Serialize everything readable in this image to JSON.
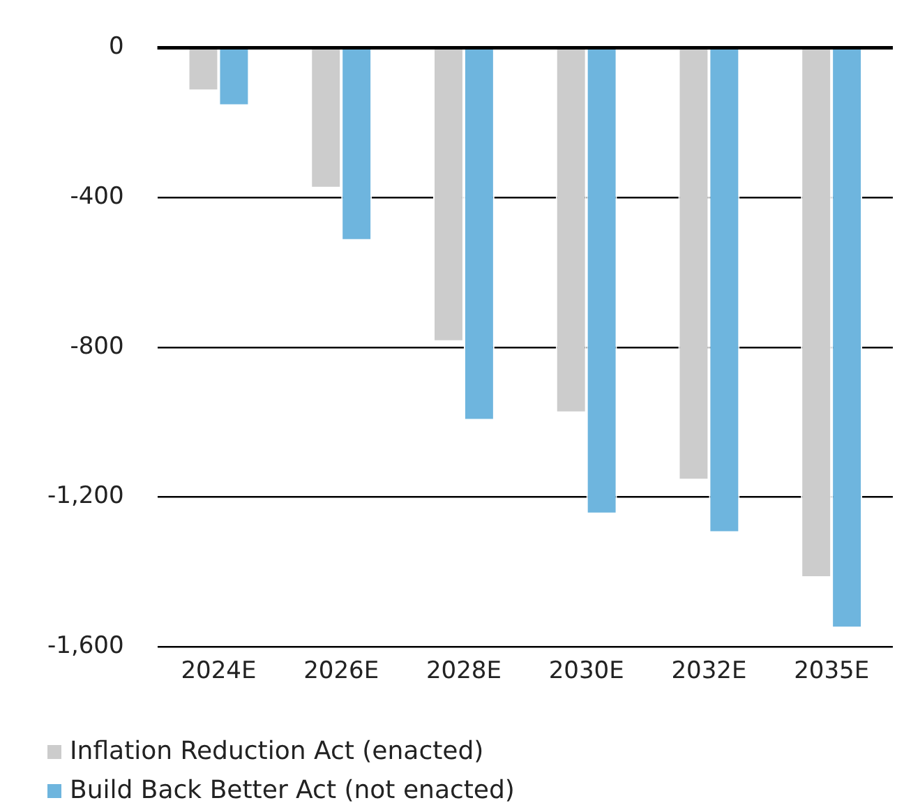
{
  "chart_data": {
    "type": "bar",
    "categories": [
      "2024E",
      "2026E",
      "2028E",
      "2030E",
      "2032E",
      "2035E"
    ],
    "series": [
      {
        "name": "Inflation Reduction Act (enacted)",
        "color": "#cccccc",
        "values": [
          -115,
          -375,
          -785,
          -975,
          -1155,
          -1415
        ]
      },
      {
        "name": "Build Back Better Act (not enacted)",
        "color": "#6eb5de",
        "values": [
          -155,
          -515,
          -995,
          -1245,
          -1295,
          -1550
        ]
      }
    ],
    "ylim": [
      -1600,
      0
    ],
    "yticks": [
      {
        "value": -1600,
        "label": "-1,600"
      },
      {
        "value": -1200,
        "label": "-1,200"
      },
      {
        "value": -800,
        "label": "-800"
      },
      {
        "value": -400,
        "label": "-400"
      },
      0
    ],
    "grid": "y",
    "legend": "bottom"
  }
}
